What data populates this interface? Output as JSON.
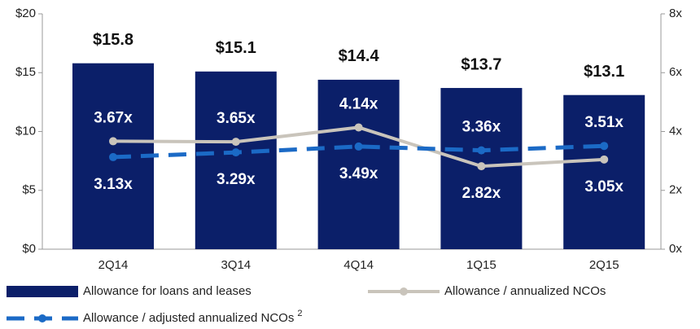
{
  "chart_data": {
    "type": "bar_line",
    "categories": [
      "2Q14",
      "3Q14",
      "4Q14",
      "1Q15",
      "2Q15"
    ],
    "series": [
      {
        "name": "Allowance for loans and leases",
        "type": "bar",
        "color": "#0b1f69",
        "values": [
          15.8,
          15.1,
          14.4,
          13.7,
          13.1
        ],
        "value_labels": [
          "$15.8",
          "$15.1",
          "$14.4",
          "$13.7",
          "$13.1"
        ]
      },
      {
        "name": "Allowance / annualized NCOs",
        "type": "line",
        "axis": "y2",
        "color": "#c9c4bb",
        "dash": false,
        "values": [
          3.67,
          3.65,
          4.14,
          2.82,
          3.05
        ],
        "value_labels": [
          "3.67x",
          "3.65x",
          "4.14x",
          "2.82x",
          "3.05x"
        ]
      },
      {
        "name": "Allowance / adjusted annualized NCOs",
        "footnote": "2",
        "type": "line",
        "axis": "y2",
        "color": "#1b6ac6",
        "dash": true,
        "values": [
          3.13,
          3.29,
          3.49,
          3.36,
          3.51
        ],
        "value_labels": [
          "3.13x",
          "3.29x",
          "3.49x",
          "3.36x",
          "3.51x"
        ]
      }
    ],
    "ylim": [
      0,
      20
    ],
    "yticks": [
      {
        "value": 0,
        "label": "$0"
      },
      {
        "value": 5,
        "label": "$5"
      },
      {
        "value": 10,
        "label": "$10"
      },
      {
        "value": 15,
        "label": "$15"
      },
      {
        "value": 20,
        "label": "$20"
      }
    ],
    "y2lim": [
      0,
      8
    ],
    "y2ticks": [
      {
        "value": 0,
        "label": "0x"
      },
      {
        "value": 2,
        "label": "2x"
      },
      {
        "value": 4,
        "label": "4x"
      },
      {
        "value": 6,
        "label": "6x"
      },
      {
        "value": 8,
        "label": "8x"
      }
    ],
    "grid": false
  }
}
